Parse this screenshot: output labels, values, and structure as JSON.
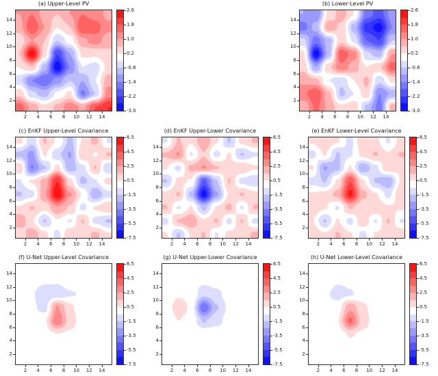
{
  "chart_data": [
    {
      "id": "a",
      "title": "(a) Upper-Level PV",
      "type": "heatmap",
      "style": "filled-contour",
      "colormap": "bwr",
      "vmin": -3.0,
      "vmax": 2.6,
      "level_step": 0.4,
      "domain": [
        0.5,
        15.5
      ],
      "x_ticks": [
        2,
        4,
        6,
        8,
        10,
        12,
        14
      ],
      "y_ticks": [
        2,
        4,
        6,
        8,
        10,
        12,
        14
      ],
      "colorbar_ticks": [
        2.6,
        1.8,
        1.0,
        0.2,
        -0.6,
        -1.4,
        -2.2,
        -3.0
      ],
      "grid_x": [
        1,
        3,
        5,
        7,
        9,
        11,
        13,
        15
      ],
      "grid_y": [
        15,
        13,
        11,
        9,
        7,
        5,
        3,
        1
      ],
      "values": [
        [
          1.0,
          1.4,
          0.8,
          0.6,
          1.0,
          1.4,
          1.2,
          0.9
        ],
        [
          0.8,
          1.8,
          1.0,
          0.2,
          0.6,
          1.8,
          1.6,
          1.1
        ],
        [
          0.3,
          1.0,
          0.6,
          -0.6,
          0.0,
          0.9,
          1.2,
          0.8
        ],
        [
          0.6,
          2.6,
          0.4,
          -2.2,
          -1.0,
          0.3,
          0.3,
          0.5
        ],
        [
          0.2,
          0.6,
          -0.8,
          -2.9,
          -1.4,
          -0.2,
          -0.4,
          0.3
        ],
        [
          -0.4,
          -1.4,
          -1.8,
          -1.2,
          -0.6,
          -1.0,
          -0.2,
          0.8
        ],
        [
          0.5,
          -0.5,
          -0.8,
          -0.1,
          0.3,
          -1.5,
          -0.6,
          1.2
        ],
        [
          1.6,
          0.9,
          0.3,
          0.7,
          1.3,
          0.9,
          1.8,
          2.2
        ]
      ]
    },
    {
      "id": "b",
      "title": "(b) Lower-Level PV",
      "type": "heatmap",
      "style": "filled-contour",
      "colormap": "bwr",
      "vmin": -3.0,
      "vmax": 2.6,
      "level_step": 0.4,
      "domain": [
        0.5,
        15.5
      ],
      "x_ticks": [
        2,
        4,
        6,
        8,
        10,
        12,
        14
      ],
      "y_ticks": [
        2,
        4,
        6,
        8,
        10,
        12,
        14
      ],
      "colorbar_ticks": [
        2.6,
        1.8,
        1.0,
        0.2,
        -0.6,
        -1.4,
        -2.2,
        -3.0
      ],
      "grid_x": [
        1,
        3,
        5,
        7,
        9,
        11,
        13,
        15
      ],
      "grid_y": [
        15,
        13,
        11,
        9,
        7,
        5,
        3,
        1
      ],
      "values": [
        [
          -1.0,
          -1.4,
          0.3,
          0.8,
          0.2,
          -1.6,
          -2.0,
          -1.2
        ],
        [
          -1.6,
          -0.8,
          0.9,
          0.5,
          -0.8,
          -2.4,
          -2.8,
          -1.4
        ],
        [
          -0.5,
          -1.6,
          -0.8,
          0.5,
          -0.3,
          -1.8,
          -2.2,
          -0.6
        ],
        [
          0.3,
          -2.9,
          -0.8,
          1.7,
          1.2,
          -0.5,
          -0.8,
          1.0
        ],
        [
          0.5,
          -1.0,
          0.5,
          1.3,
          0.8,
          0.2,
          0.5,
          1.6
        ],
        [
          0.9,
          0.7,
          -0.2,
          -0.5,
          0.2,
          0.7,
          -0.5,
          0.3
        ],
        [
          1.3,
          1.8,
          0.7,
          -0.7,
          -0.2,
          0.5,
          -1.4,
          -0.9
        ],
        [
          0.7,
          1.5,
          0.9,
          0.3,
          0.5,
          -0.7,
          -1.6,
          0.8
        ]
      ]
    },
    {
      "id": "c",
      "title": "(c) EnKF Upper-Level Covariance",
      "type": "heatmap",
      "style": "filled-contour",
      "colormap": "bwr",
      "vmin": -7.5,
      "vmax": 6.5,
      "level_step": 1.0,
      "domain": [
        0.5,
        15.5
      ],
      "x_ticks": [
        2,
        4,
        6,
        8,
        10,
        12,
        14
      ],
      "y_ticks": [
        2,
        4,
        6,
        8,
        10,
        12,
        14
      ],
      "colorbar_ticks": [
        6.5,
        4.5,
        2.5,
        0.5,
        -1.5,
        -3.5,
        -5.5,
        -7.5
      ],
      "grid_x": [
        1,
        3,
        5,
        7,
        9,
        11,
        13,
        15
      ],
      "grid_y": [
        15,
        13,
        11,
        9,
        7,
        5,
        3,
        1
      ],
      "values": [
        [
          0.8,
          -1.2,
          1.6,
          0.4,
          -1.8,
          0.6,
          1.8,
          -0.6
        ],
        [
          -1.8,
          -2.8,
          0.6,
          -1.2,
          -2.6,
          1.4,
          0.4,
          1.6
        ],
        [
          1.4,
          -3.6,
          -1.6,
          0.8,
          -2.2,
          -0.8,
          1.6,
          -1.4
        ],
        [
          -0.6,
          0.6,
          1.8,
          5.5,
          0.8,
          -1.8,
          -0.6,
          0.8
        ],
        [
          -1.6,
          -0.8,
          2.4,
          6.5,
          2.6,
          0.4,
          -2.4,
          -0.8
        ],
        [
          0.6,
          1.6,
          0.8,
          2.4,
          1.4,
          -0.8,
          0.6,
          1.4
        ],
        [
          2.4,
          0.6,
          -1.6,
          0.4,
          -0.6,
          1.6,
          -0.8,
          -1.6
        ],
        [
          0.6,
          2.2,
          0.8,
          -0.8,
          1.4,
          0.6,
          1.8,
          0.6
        ]
      ]
    },
    {
      "id": "d",
      "title": "(d) EnKF Upper-Lower Covariance",
      "type": "heatmap",
      "style": "filled-contour",
      "colormap": "bwr",
      "vmin": -7.5,
      "vmax": 6.5,
      "level_step": 1.0,
      "domain": [
        0.5,
        15.5
      ],
      "x_ticks": [
        2,
        4,
        6,
        8,
        10,
        12,
        14
      ],
      "y_ticks": [
        2,
        4,
        6,
        8,
        10,
        12,
        14
      ],
      "colorbar_ticks": [
        6.5,
        4.5,
        2.5,
        0.5,
        -1.5,
        -3.5,
        -5.5,
        -7.5
      ],
      "grid_x": [
        1,
        3,
        5,
        7,
        9,
        11,
        13,
        15
      ],
      "grid_y": [
        15,
        13,
        11,
        9,
        7,
        5,
        3,
        1
      ],
      "values": [
        [
          -0.6,
          1.6,
          0.6,
          2.4,
          0.6,
          -1.6,
          0.8,
          1.6
        ],
        [
          1.6,
          2.6,
          -0.6,
          1.4,
          -0.8,
          0.6,
          -1.6,
          -0.6
        ],
        [
          0.6,
          -0.8,
          1.8,
          2.6,
          1.6,
          0.8,
          1.4,
          0.6
        ],
        [
          -1.6,
          0.8,
          0.4,
          -4.8,
          -1.6,
          1.6,
          -0.8,
          -1.4
        ],
        [
          0.8,
          1.6,
          -1.8,
          -7.0,
          -2.6,
          0.6,
          1.6,
          0.8
        ],
        [
          1.6,
          -0.6,
          0.6,
          -1.8,
          0.6,
          1.8,
          -0.6,
          1.6
        ],
        [
          -0.8,
          1.6,
          2.4,
          0.6,
          1.6,
          -0.8,
          1.6,
          -0.8
        ],
        [
          0.6,
          -1.6,
          0.6,
          1.6,
          -0.6,
          0.8,
          0.6,
          1.8
        ]
      ]
    },
    {
      "id": "e",
      "title": "(e) EnKF Lower-Level Covariance",
      "type": "heatmap",
      "style": "filled-contour",
      "colormap": "bwr",
      "vmin": -7.5,
      "vmax": 6.5,
      "level_step": 1.0,
      "domain": [
        0.5,
        15.5
      ],
      "x_ticks": [
        2,
        4,
        6,
        8,
        10,
        12,
        14
      ],
      "y_ticks": [
        2,
        4,
        6,
        8,
        10,
        12,
        14
      ],
      "colorbar_ticks": [
        6.5,
        4.5,
        2.5,
        0.5,
        -1.5,
        -3.5,
        -5.5,
        -7.5
      ],
      "grid_x": [
        1,
        3,
        5,
        7,
        9,
        11,
        13,
        15
      ],
      "grid_y": [
        15,
        13,
        11,
        9,
        7,
        5,
        3,
        1
      ],
      "values": [
        [
          0.6,
          1.4,
          0.6,
          -0.8,
          1.4,
          0.8,
          -0.6,
          0.8
        ],
        [
          -0.8,
          0.6,
          -1.6,
          -0.6,
          0.8,
          1.6,
          0.6,
          1.6
        ],
        [
          0.6,
          -2.6,
          -1.8,
          0.6,
          -2.4,
          -0.8,
          1.4,
          0.6
        ],
        [
          -0.8,
          -1.6,
          0.6,
          4.5,
          0.6,
          -1.6,
          -2.4,
          0.6
        ],
        [
          0.6,
          0.8,
          1.8,
          5.8,
          1.8,
          0.6,
          -0.8,
          1.4
        ],
        [
          1.4,
          0.6,
          -0.6,
          1.6,
          0.8,
          1.4,
          0.6,
          0.6
        ],
        [
          0.6,
          -1.6,
          0.6,
          -0.8,
          1.4,
          -0.6,
          1.6,
          -0.6
        ],
        [
          1.4,
          0.6,
          1.6,
          0.6,
          -0.8,
          0.6,
          0.8,
          1.4
        ]
      ]
    },
    {
      "id": "f",
      "title": "(f) U-Net Upper-Level Covariance",
      "type": "heatmap",
      "style": "filled-contour",
      "colormap": "bwr",
      "vmin": -7.5,
      "vmax": 6.5,
      "level_step": 1.0,
      "domain": [
        0.5,
        15.5
      ],
      "x_ticks": [
        2,
        4,
        6,
        8,
        10,
        12,
        14
      ],
      "y_ticks": [
        2,
        4,
        6,
        8,
        10,
        12,
        14
      ],
      "colorbar_ticks": [
        6.5,
        4.5,
        2.5,
        0.5,
        -1.5,
        -3.5,
        -5.5,
        -7.5
      ],
      "grid_x": [
        1,
        3,
        5,
        7,
        9,
        11,
        13,
        15
      ],
      "grid_y": [
        15,
        13,
        11,
        9,
        7,
        5,
        3,
        1
      ],
      "values": [
        [
          0,
          0,
          0,
          0,
          0,
          0,
          0,
          0
        ],
        [
          0,
          0,
          -0.3,
          -0.4,
          0,
          0,
          0,
          0
        ],
        [
          0,
          -0.4,
          -1.3,
          -1.1,
          -0.6,
          -0.4,
          0,
          0
        ],
        [
          0,
          -0.3,
          -0.9,
          2.6,
          0.8,
          -0.4,
          0,
          0
        ],
        [
          0,
          0,
          0.3,
          3.4,
          1.0,
          0,
          0,
          0
        ],
        [
          0,
          0,
          0,
          0.5,
          0.3,
          0,
          0,
          0
        ],
        [
          0,
          0,
          0,
          0,
          0,
          0,
          0,
          0
        ],
        [
          0,
          0,
          0,
          0,
          0,
          0,
          0,
          0
        ]
      ]
    },
    {
      "id": "g",
      "title": "(g) U-Net Upper-Lower Covariance",
      "type": "heatmap",
      "style": "filled-contour",
      "colormap": "bwr",
      "vmin": -7.5,
      "vmax": 6.5,
      "level_step": 1.0,
      "domain": [
        0.5,
        15.5
      ],
      "x_ticks": [
        2,
        4,
        6,
        8,
        10,
        12,
        14
      ],
      "y_ticks": [
        2,
        4,
        6,
        8,
        10,
        12,
        14
      ],
      "colorbar_ticks": [
        6.5,
        4.5,
        2.5,
        0.5,
        -1.5,
        -3.5,
        -5.5,
        -7.5
      ],
      "grid_x": [
        1,
        3,
        5,
        7,
        9,
        11,
        13,
        15
      ],
      "grid_y": [
        15,
        13,
        11,
        9,
        7,
        5,
        3,
        1
      ],
      "values": [
        [
          0,
          0,
          0,
          0,
          0,
          0,
          0,
          0
        ],
        [
          0,
          0,
          0,
          -0.3,
          0,
          0,
          0,
          0
        ],
        [
          0,
          0.4,
          0.3,
          -1.2,
          -0.8,
          0,
          0,
          0
        ],
        [
          0,
          0.9,
          0.4,
          -4.4,
          -1.6,
          -0.3,
          0,
          0
        ],
        [
          0,
          0.5,
          0.2,
          -1.6,
          -0.9,
          0,
          0,
          0
        ],
        [
          0,
          0,
          0.3,
          0.4,
          0.2,
          0,
          0,
          0
        ],
        [
          0,
          0,
          0,
          0,
          0,
          0,
          0,
          0
        ],
        [
          0,
          0,
          0,
          0,
          0,
          0,
          0,
          0
        ]
      ]
    },
    {
      "id": "h",
      "title": "(h) U-Net Lower-Level Covariance",
      "type": "heatmap",
      "style": "filled-contour",
      "colormap": "bwr",
      "vmin": -7.5,
      "vmax": 6.5,
      "level_step": 1.0,
      "domain": [
        0.5,
        15.5
      ],
      "x_ticks": [
        2,
        4,
        6,
        8,
        10,
        12,
        14
      ],
      "y_ticks": [
        2,
        4,
        6,
        8,
        10,
        12,
        14
      ],
      "colorbar_ticks": [
        6.5,
        4.5,
        2.5,
        0.5,
        -1.5,
        -3.5,
        -5.5,
        -7.5
      ],
      "grid_x": [
        1,
        3,
        5,
        7,
        9,
        11,
        13,
        15
      ],
      "grid_y": [
        15,
        13,
        11,
        9,
        7,
        5,
        3,
        1
      ],
      "values": [
        [
          0,
          0,
          0,
          0,
          0,
          0,
          0,
          0
        ],
        [
          0,
          0,
          -0.4,
          -0.3,
          0,
          0,
          0,
          0
        ],
        [
          0,
          -0.3,
          -0.9,
          -0.6,
          0,
          0,
          0,
          0
        ],
        [
          0,
          0,
          0,
          2.2,
          0.7,
          0,
          0,
          0
        ],
        [
          0,
          0,
          0.4,
          3.8,
          1.0,
          0,
          0,
          0
        ],
        [
          0,
          0,
          0,
          0.6,
          0.3,
          0,
          0,
          0
        ],
        [
          0,
          0,
          0,
          0,
          0,
          0,
          0,
          0
        ],
        [
          0,
          0,
          0,
          0,
          0,
          0,
          0,
          0
        ]
      ]
    }
  ],
  "colors": {
    "cmap_low": "#0000ff",
    "cmap_mid": "#ffffff",
    "cmap_high": "#ff0000",
    "axis": "#2b2b2b",
    "background": "#ffffff"
  }
}
